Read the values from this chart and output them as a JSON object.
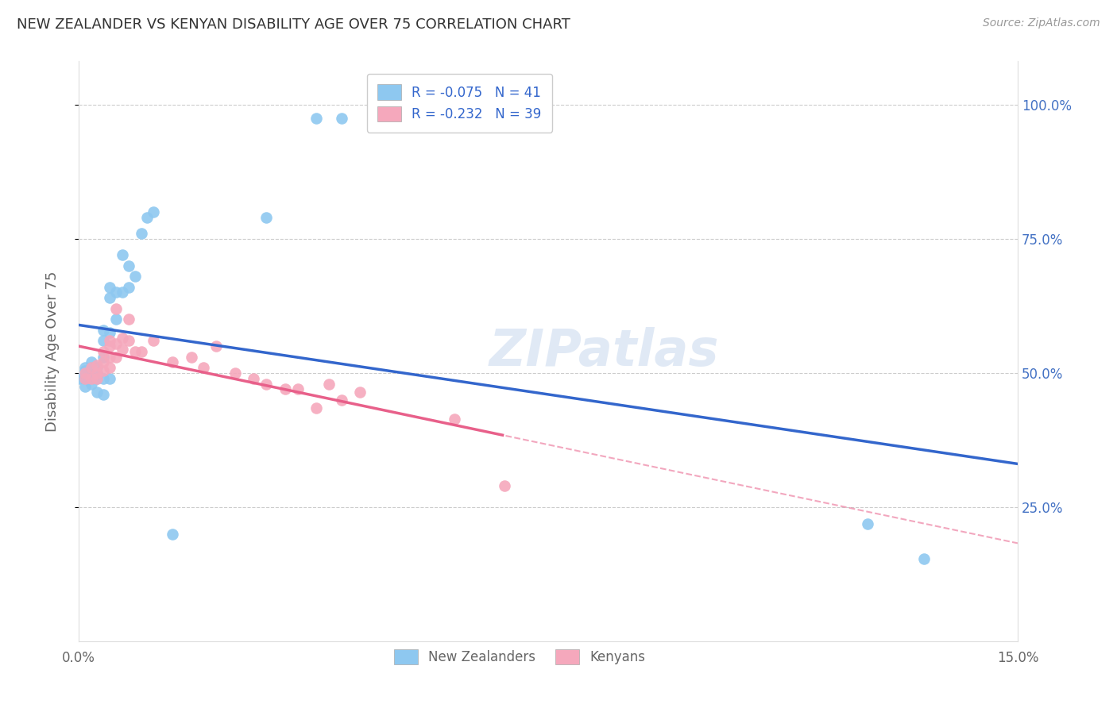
{
  "title": "NEW ZEALANDER VS KENYAN DISABILITY AGE OVER 75 CORRELATION CHART",
  "source": "Source: ZipAtlas.com",
  "ylabel": "Disability Age Over 75",
  "nz_R": -0.075,
  "nz_N": 41,
  "ke_R": -0.232,
  "ke_N": 39,
  "nz_color": "#8EC8F0",
  "ke_color": "#F5A8BC",
  "line_nz_color": "#3366CC",
  "line_ke_color": "#E8608A",
  "watermark": "ZIPatlas",
  "xmin": 0.0,
  "xmax": 0.15,
  "ymin": 0.0,
  "ymax": 1.08,
  "nz_x": [
    0.0,
    0.001,
    0.001,
    0.001,
    0.001,
    0.002,
    0.002,
    0.002,
    0.002,
    0.002,
    0.002,
    0.003,
    0.003,
    0.003,
    0.003,
    0.003,
    0.004,
    0.004,
    0.004,
    0.004,
    0.004,
    0.005,
    0.005,
    0.005,
    0.005,
    0.006,
    0.006,
    0.007,
    0.007,
    0.008,
    0.008,
    0.009,
    0.01,
    0.011,
    0.012,
    0.015,
    0.03,
    0.038,
    0.042,
    0.126,
    0.135
  ],
  "nz_y": [
    0.49,
    0.475,
    0.49,
    0.505,
    0.51,
    0.48,
    0.49,
    0.5,
    0.5,
    0.51,
    0.52,
    0.465,
    0.49,
    0.495,
    0.5,
    0.51,
    0.46,
    0.49,
    0.53,
    0.56,
    0.58,
    0.49,
    0.575,
    0.64,
    0.66,
    0.6,
    0.65,
    0.65,
    0.72,
    0.66,
    0.7,
    0.68,
    0.76,
    0.79,
    0.8,
    0.2,
    0.79,
    0.975,
    0.975,
    0.22,
    0.155
  ],
  "ke_x": [
    0.001,
    0.001,
    0.002,
    0.002,
    0.003,
    0.003,
    0.003,
    0.004,
    0.004,
    0.004,
    0.005,
    0.005,
    0.005,
    0.005,
    0.006,
    0.006,
    0.006,
    0.007,
    0.007,
    0.008,
    0.008,
    0.009,
    0.01,
    0.012,
    0.015,
    0.018,
    0.02,
    0.022,
    0.025,
    0.028,
    0.03,
    0.033,
    0.035,
    0.038,
    0.04,
    0.042,
    0.045,
    0.06,
    0.068
  ],
  "ke_y": [
    0.49,
    0.5,
    0.49,
    0.51,
    0.49,
    0.5,
    0.515,
    0.505,
    0.52,
    0.54,
    0.51,
    0.53,
    0.55,
    0.56,
    0.53,
    0.555,
    0.62,
    0.545,
    0.565,
    0.56,
    0.6,
    0.54,
    0.54,
    0.56,
    0.52,
    0.53,
    0.51,
    0.55,
    0.5,
    0.49,
    0.48,
    0.47,
    0.47,
    0.435,
    0.48,
    0.45,
    0.465,
    0.415,
    0.29
  ]
}
